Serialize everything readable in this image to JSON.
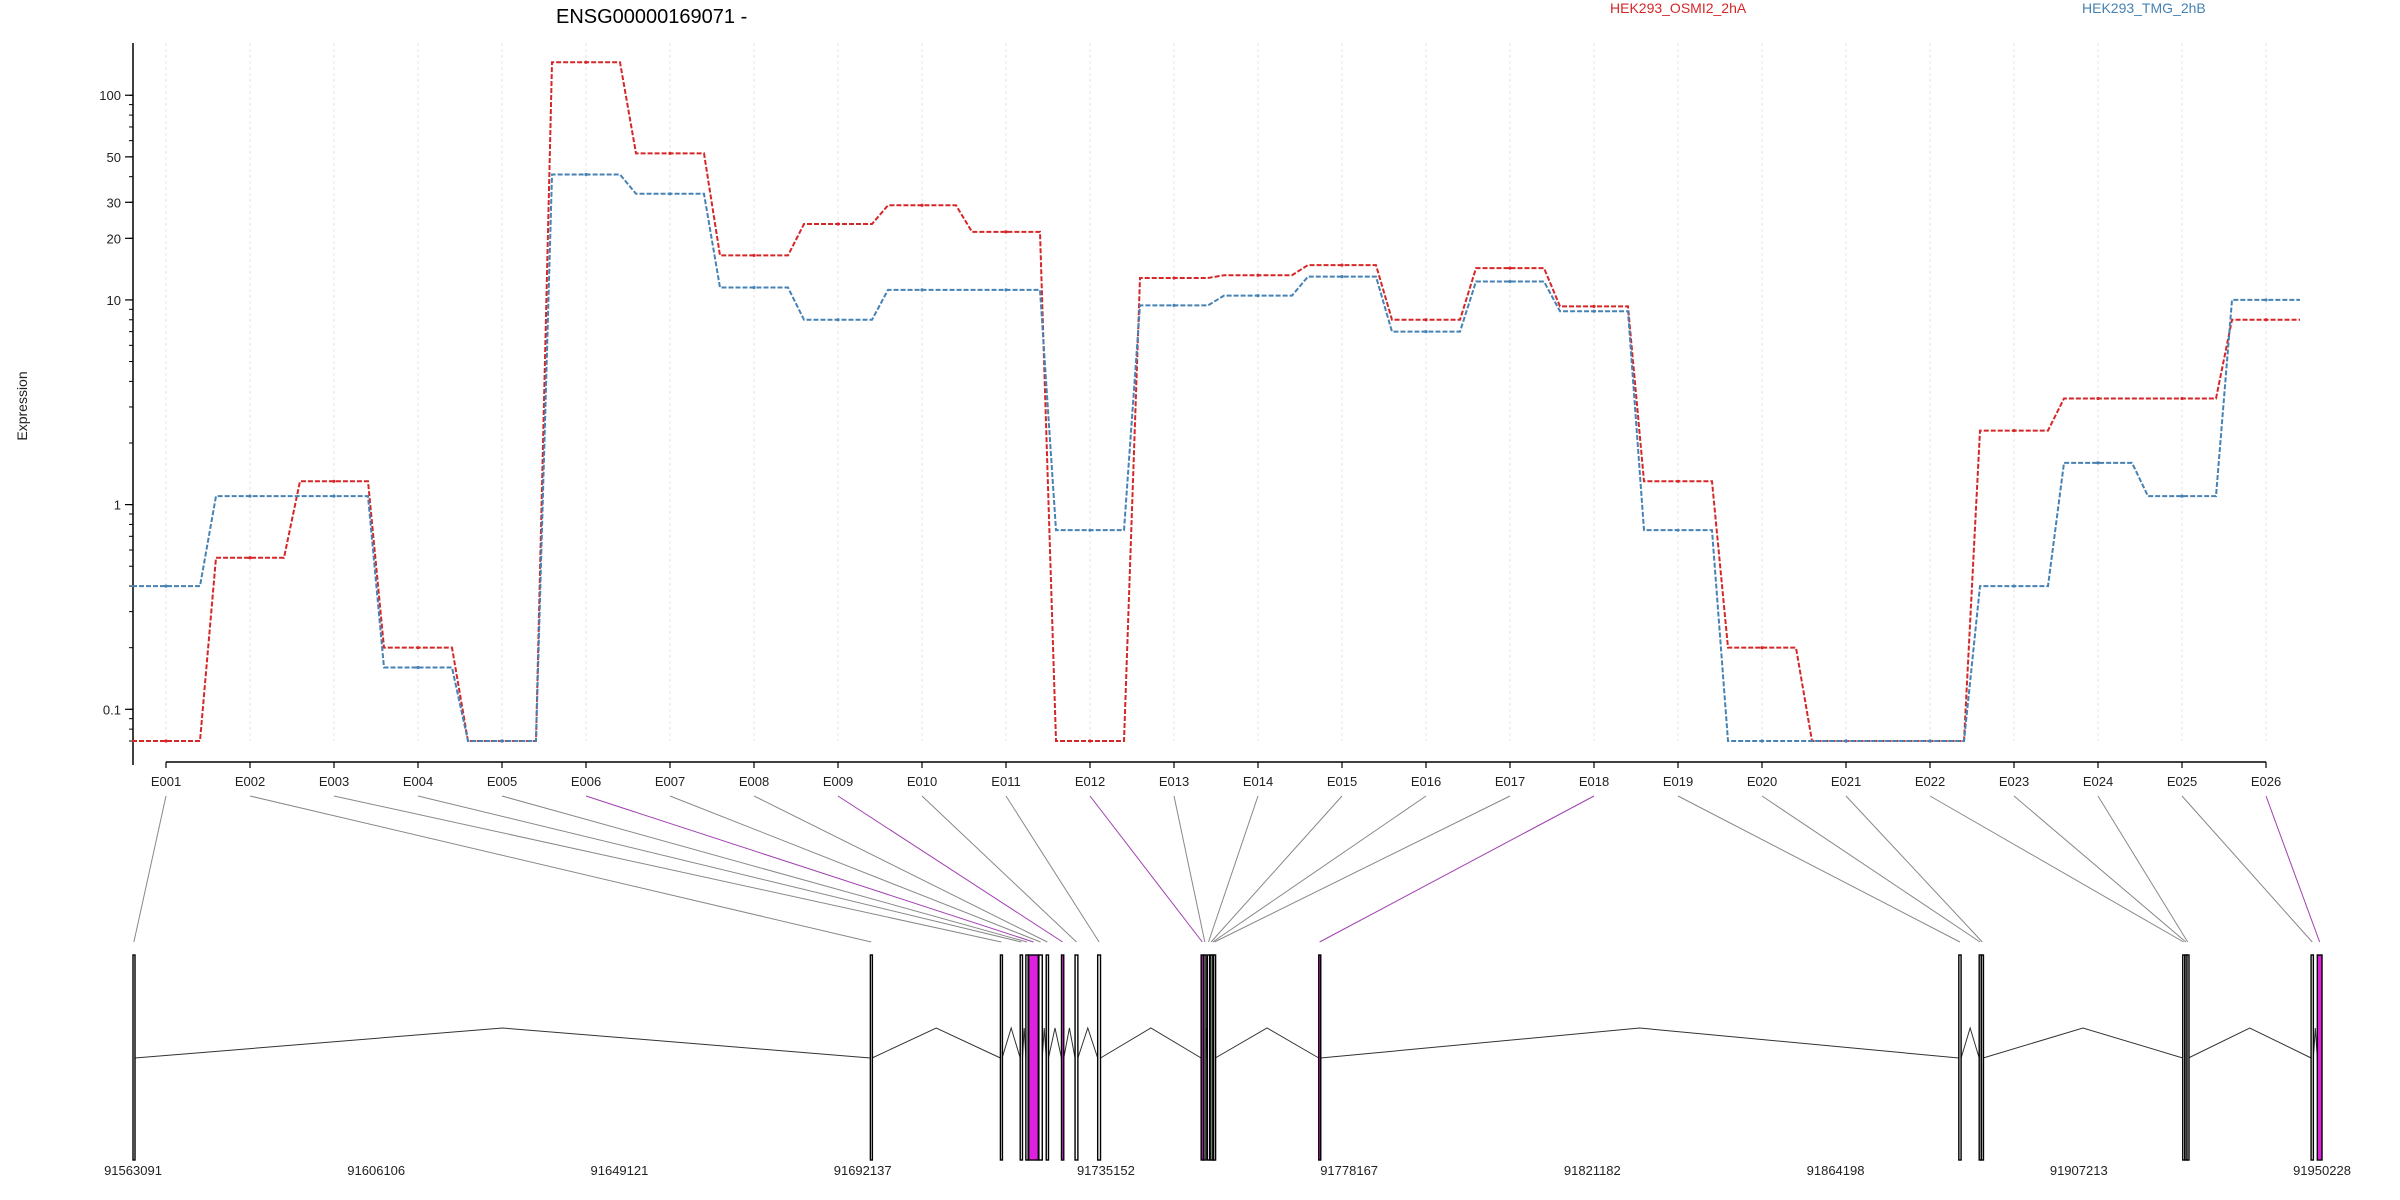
{
  "chart_data": {
    "type": "line",
    "title": "ENSG00000169071 -",
    "xlabel": "",
    "ylabel": "Expression",
    "y_scale": "log",
    "ylim": [
      0.07,
      180
    ],
    "y_ticks": [
      0.1,
      1,
      10,
      20,
      30,
      50,
      100
    ],
    "y_tick_labels": [
      "0.1",
      "1",
      "10",
      "20",
      "30",
      "50",
      "100"
    ],
    "grid": "vertical, light",
    "legend_position": "top",
    "categories": [
      "E001",
      "E002",
      "E003",
      "E004",
      "E005",
      "E006",
      "E007",
      "E008",
      "E009",
      "E010",
      "E011",
      "E012",
      "E013",
      "E014",
      "E015",
      "E016",
      "E017",
      "E018",
      "E019",
      "E020",
      "E021",
      "E022",
      "E023",
      "E024",
      "E025",
      "E026"
    ],
    "series": [
      {
        "name": "HEK293_OSMI2_2hA",
        "color": "#d62728",
        "values": [
          0.07,
          0.55,
          1.3,
          0.2,
          0.07,
          145,
          52,
          16.5,
          23.5,
          29,
          21.5,
          0.07,
          12.8,
          13.2,
          14.8,
          8,
          14.3,
          9.3,
          1.3,
          0.2,
          0.07,
          0.07,
          2.3,
          3.3,
          3.3,
          8
        ]
      },
      {
        "name": "HEK293_TMG_2hB",
        "color": "#4682b4",
        "values": [
          0.4,
          1.1,
          1.1,
          0.16,
          0.07,
          41,
          33,
          11.5,
          8,
          11.2,
          11.2,
          0.75,
          9.4,
          10.5,
          13,
          7,
          12.3,
          8.8,
          0.75,
          0.07,
          0.07,
          0.07,
          0.4,
          1.6,
          1.1,
          10
        ]
      }
    ],
    "genomic_axis": {
      "tick_labels": [
        "91563091",
        "91606106",
        "91649121",
        "91692137",
        "91735152",
        "91778167",
        "91821182",
        "91864198",
        "91907213",
        "91950228"
      ],
      "tick_values": [
        91563091,
        91606106,
        91649121,
        91692137,
        91735152,
        91778167,
        91821182,
        91864198,
        91907213,
        91950228
      ],
      "range": [
        91563091,
        91950228
      ],
      "exons": [
        {
          "id": "E001",
          "start": 91563091,
          "end": 91563400,
          "highlight": false
        },
        {
          "id": "E002",
          "start": 91693500,
          "end": 91693800,
          "highlight": false
        },
        {
          "id": "E003",
          "start": 91716500,
          "end": 91716800,
          "highlight": false
        },
        {
          "id": "E004",
          "start": 91720000,
          "end": 91720400,
          "highlight": false
        },
        {
          "id": "E005",
          "start": 91721000,
          "end": 91721400,
          "highlight": false
        },
        {
          "id": "E006",
          "start": 91721500,
          "end": 91723200,
          "highlight": true
        },
        {
          "id": "E007",
          "start": 91723300,
          "end": 91723900,
          "highlight": false
        },
        {
          "id": "E008",
          "start": 91724600,
          "end": 91725000,
          "highlight": false
        },
        {
          "id": "E009",
          "start": 91727300,
          "end": 91727700,
          "highlight": true
        },
        {
          "id": "E010",
          "start": 91729700,
          "end": 91730200,
          "highlight": false
        },
        {
          "id": "E011",
          "start": 91733700,
          "end": 91734200,
          "highlight": false
        },
        {
          "id": "E012",
          "start": 91752000,
          "end": 91752400,
          "highlight": true
        },
        {
          "id": "E013",
          "start": 91752500,
          "end": 91752800,
          "highlight": false
        },
        {
          "id": "E014",
          "start": 91753100,
          "end": 91753500,
          "highlight": false
        },
        {
          "id": "E015",
          "start": 91753600,
          "end": 91753900,
          "highlight": false
        },
        {
          "id": "E016",
          "start": 91753950,
          "end": 91754150,
          "highlight": false
        },
        {
          "id": "E017",
          "start": 91754200,
          "end": 91754500,
          "highlight": false
        },
        {
          "id": "E018",
          "start": 91772800,
          "end": 91773100,
          "highlight": true
        },
        {
          "id": "E019",
          "start": 91886000,
          "end": 91886400,
          "highlight": false
        },
        {
          "id": "E020",
          "start": 91889600,
          "end": 91889900,
          "highlight": false
        },
        {
          "id": "E021",
          "start": 91890000,
          "end": 91890300,
          "highlight": false
        },
        {
          "id": "E022",
          "start": 91925600,
          "end": 91925900,
          "highlight": false
        },
        {
          "id": "E023",
          "start": 91926000,
          "end": 91926300,
          "highlight": false
        },
        {
          "id": "E024",
          "start": 91926350,
          "end": 91926600,
          "highlight": false
        },
        {
          "id": "E025",
          "start": 91948300,
          "end": 91948700,
          "highlight": false
        },
        {
          "id": "E026",
          "start": 91949400,
          "end": 91950228,
          "highlight": true
        }
      ]
    }
  },
  "colors": {
    "highlight": "#e020e0",
    "connector": "#888888",
    "connector_highlight": "#a040b0",
    "gene_line": "#000000",
    "grid": "#e6e6e6"
  }
}
